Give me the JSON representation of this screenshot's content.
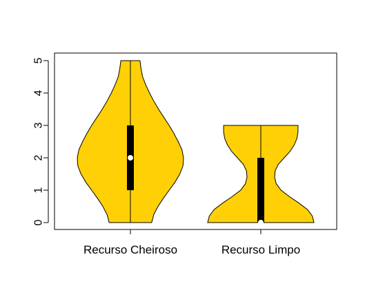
{
  "chart_data": {
    "type": "violin",
    "title": "",
    "xlabel": "",
    "ylabel": "",
    "categories": [
      "Recurso Cheiroso",
      "Recurso Limpo"
    ],
    "y_ticks": [
      "0",
      "1",
      "2",
      "3",
      "4",
      "5"
    ],
    "ylim": [
      0,
      5
    ],
    "fill_color": "#FFD006",
    "stroke_color": "#000000",
    "violins": [
      {
        "name": "Recurso Cheiroso",
        "min": 0,
        "max": 5,
        "q1": 1,
        "median": 2,
        "q3": 3,
        "density": [
          [
            0.0,
            0.4
          ],
          [
            0.25,
            0.44
          ],
          [
            0.5,
            0.52
          ],
          [
            0.75,
            0.62
          ],
          [
            1.0,
            0.73
          ],
          [
            1.25,
            0.84
          ],
          [
            1.5,
            0.93
          ],
          [
            1.75,
            0.99
          ],
          [
            2.0,
            1.0
          ],
          [
            2.25,
            0.97
          ],
          [
            2.5,
            0.9
          ],
          [
            2.75,
            0.82
          ],
          [
            3.0,
            0.73
          ],
          [
            3.25,
            0.63
          ],
          [
            3.5,
            0.53
          ],
          [
            3.75,
            0.44
          ],
          [
            4.0,
            0.36
          ],
          [
            4.25,
            0.29
          ],
          [
            4.5,
            0.23
          ],
          [
            4.75,
            0.2
          ],
          [
            5.0,
            0.18
          ]
        ]
      },
      {
        "name": "Recurso Limpo",
        "min": 0,
        "max": 3,
        "q1": 0,
        "median": 0,
        "q3": 2,
        "density": [
          [
            0.0,
            1.0
          ],
          [
            0.2,
            0.97
          ],
          [
            0.4,
            0.88
          ],
          [
            0.6,
            0.72
          ],
          [
            0.8,
            0.54
          ],
          [
            1.0,
            0.38
          ],
          [
            1.2,
            0.29
          ],
          [
            1.4,
            0.26
          ],
          [
            1.6,
            0.27
          ],
          [
            1.8,
            0.33
          ],
          [
            2.0,
            0.44
          ],
          [
            2.2,
            0.55
          ],
          [
            2.4,
            0.63
          ],
          [
            2.6,
            0.68
          ],
          [
            2.8,
            0.7
          ],
          [
            3.0,
            0.7
          ]
        ]
      }
    ]
  }
}
